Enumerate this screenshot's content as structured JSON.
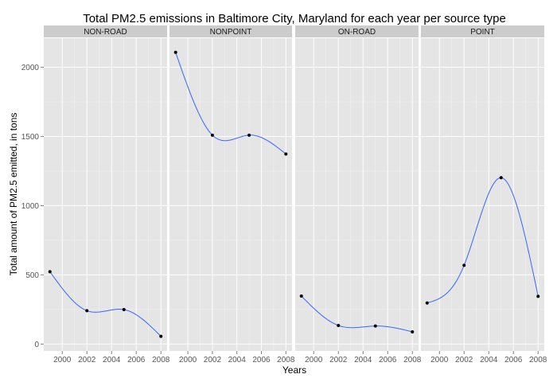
{
  "chart_data": {
    "type": "line",
    "title": "Total PM2.5 emissions in Baltimore City, Maryland for each year per source type",
    "xlabel": "Years",
    "ylabel": "Total amount of PM2.5 emitted, in tons",
    "xlim": [
      1998.5,
      2008.5
    ],
    "ylim": [
      -50,
      2210
    ],
    "x_ticks": [
      2000,
      2002,
      2004,
      2006,
      2008
    ],
    "y_ticks": [
      0,
      500,
      1000,
      1500,
      2000
    ],
    "x": [
      1999,
      2002,
      2005,
      2008
    ],
    "grid": true,
    "facet_by": "source type",
    "panels": [
      {
        "label": "NON-ROAD",
        "values": [
          522.94,
          240.85,
          248.93,
          55.82
        ]
      },
      {
        "label": "NONPOINT",
        "values": [
          2107.63,
          1509.5,
          1509.5,
          1373.21
        ]
      },
      {
        "label": "ON-ROAD",
        "values": [
          346.82,
          134.31,
          130.43,
          88.28
        ]
      },
      {
        "label": "POINT",
        "values": [
          296.8,
          569.26,
          1202.49,
          344.98
        ]
      }
    ],
    "colors": {
      "panel_bg": "#e5e5e5",
      "grid_major": "#ffffff",
      "grid_minor": "#f2f2f2",
      "strip_bg": "#cccccc",
      "smooth_line": "#3366ff",
      "point": "#000000",
      "tick": "#7f7f7f"
    }
  }
}
